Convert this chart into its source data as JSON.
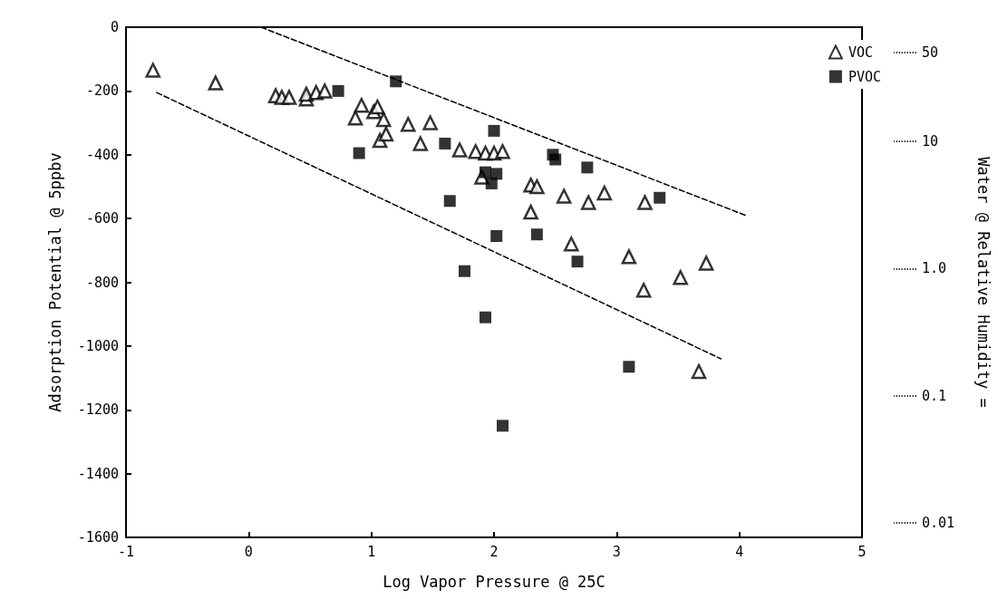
{
  "chart_data": {
    "type": "scatter",
    "xlabel": "Log Vapor Pressure @ 25C",
    "ylabel": "Adsorption Potential @ 5ppbv",
    "y2label": "Water @ Relative Humidity =",
    "xlim": [
      -1,
      5
    ],
    "xticks": [
      -1,
      0,
      1,
      2,
      3,
      4,
      5
    ],
    "ylim": [
      -1600,
      0
    ],
    "yticks": [
      -1600,
      -1400,
      -1200,
      -1000,
      -800,
      -600,
      -400,
      -200,
      0
    ],
    "y2lim": [
      0.0077,
      79
    ],
    "y2ticks": [
      50,
      10,
      {
        "value": 1,
        "label": "1.0"
      },
      0.1,
      0.01
    ],
    "log": "y2",
    "grid": false,
    "legend": "top right",
    "series": [
      {
        "name": "VOC",
        "color": "#000000",
        "marker": "triangle",
        "x": [
          -0.78,
          -0.27,
          0.22,
          0.27,
          0.33,
          0.47,
          0.47,
          0.55,
          0.62,
          0.87,
          0.92,
          1.02,
          1.05,
          1.1,
          1.07,
          1.12,
          1.3,
          1.48,
          1.4,
          1.72,
          1.85,
          1.93,
          2.0,
          2.07,
          1.9,
          2.3,
          2.35,
          2.3,
          2.57,
          2.77,
          2.9,
          2.63,
          3.23,
          3.1,
          3.22,
          3.52,
          3.73,
          3.67
        ],
        "values": [
          -135,
          -175,
          -215,
          -220,
          -220,
          -225,
          -210,
          -205,
          -200,
          -285,
          -245,
          -265,
          -250,
          -290,
          -355,
          -335,
          -305,
          -300,
          -365,
          -385,
          -390,
          -395,
          -395,
          -390,
          -470,
          -495,
          -500,
          -580,
          -530,
          -550,
          -520,
          -680,
          -550,
          -720,
          -825,
          -785,
          -740,
          -1080
        ]
      },
      {
        "name": "PVOC",
        "color": "#000000",
        "marker": "square",
        "x": [
          0.73,
          1.2,
          0.9,
          1.6,
          2.0,
          1.93,
          2.02,
          1.98,
          1.64,
          2.48,
          2.5,
          2.76,
          3.35,
          2.02,
          2.35,
          2.68,
          1.76,
          1.93,
          3.1,
          2.07
        ],
        "values": [
          -200,
          -170,
          -395,
          -365,
          -325,
          -455,
          -460,
          -490,
          -545,
          -400,
          -415,
          -440,
          -535,
          -655,
          -650,
          -735,
          -765,
          -910,
          -1065,
          -1250
        ]
      },
      {
        "type": "line",
        "color": "#000000",
        "line_style": "dashed",
        "marker": "none",
        "x": [
          0.1,
          4.05
        ],
        "values": [
          0,
          -590
        ]
      },
      {
        "type": "line",
        "color": "#000000",
        "line_style": "dashed",
        "marker": "none",
        "x": [
          -0.75,
          3.85
        ],
        "values": [
          -205,
          -1040
        ]
      }
    ]
  }
}
